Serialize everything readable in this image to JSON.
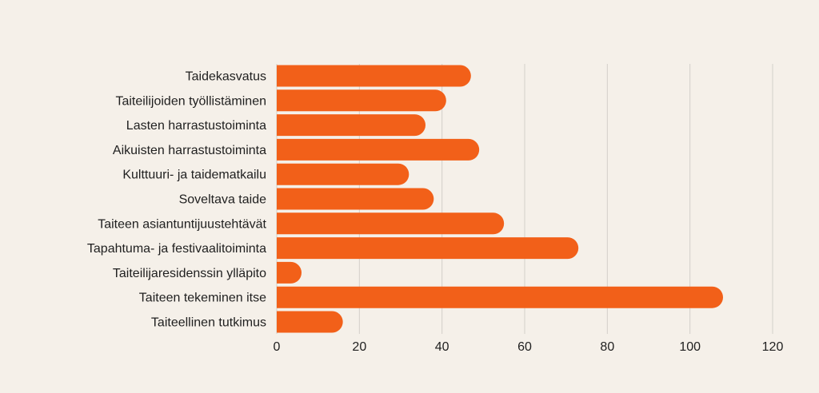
{
  "chart_data": {
    "type": "bar",
    "orientation": "horizontal",
    "categories": [
      "Taidekasvatus",
      "Taiteilijoiden työllistäminen",
      "Lasten harrastustoiminta",
      "Aikuisten harrastustoiminta",
      "Kulttuuri- ja taidematkailu",
      "Soveltava taide",
      "Taiteen asiantuntijuustehtävät",
      "Tapahtuma- ja festivaalitoiminta",
      "Taiteilijaresidenssin ylläpito",
      "Taiteen tekeminen itse",
      "Taiteellinen tutkimus"
    ],
    "values": [
      47,
      41,
      36,
      49,
      32,
      38,
      55,
      73,
      6,
      108,
      16
    ],
    "xlim": [
      0,
      120
    ],
    "xticks": [
      0,
      20,
      40,
      60,
      80,
      100,
      120
    ],
    "grid": true,
    "bar_color": "#f26019",
    "background_color": "#f5f0e9"
  }
}
